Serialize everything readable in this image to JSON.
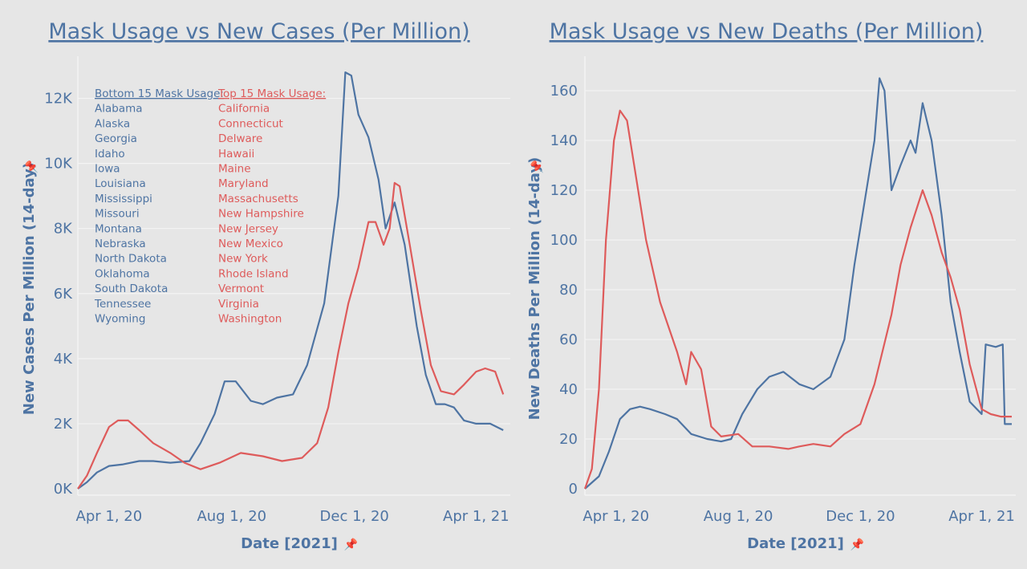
{
  "colors": {
    "bottom": "#4e74a3",
    "top": "#de5b5b",
    "grid": "#f4f4f4",
    "text": "#4e74a3"
  },
  "pin_icon": "pushpin-icon",
  "chart_data": [
    {
      "type": "line",
      "title": "Mask Usage vs New Cases (Per Million)",
      "xlabel": "Date [2021]",
      "ylabel": "New Cases Per Million (14-day)",
      "xlim": [
        "2020-03-01",
        "2021-05-05"
      ],
      "ylim": [
        0,
        13000
      ],
      "x_ticks": [
        "Apr 1, 20",
        "Aug 1, 20",
        "Dec 1, 20",
        "Apr 1, 21"
      ],
      "x_tick_dates": [
        "2020-04-01",
        "2020-08-01",
        "2020-12-01",
        "2021-04-01"
      ],
      "y_ticks": [
        0,
        2000,
        4000,
        6000,
        8000,
        10000,
        12000
      ],
      "y_tick_labels": [
        "0K",
        "2K",
        "4K",
        "6K",
        "8K",
        "10K",
        "12K"
      ],
      "legend": {
        "placement": "top-left",
        "groups": [
          {
            "header": "Bottom 15 Mask Usage:",
            "color": "#4e74a3",
            "items": [
              "Alabama",
              "Alaska",
              "Georgia",
              "Idaho",
              "Iowa",
              "Louisiana",
              "Mississippi",
              "Missouri",
              "Montana",
              "Nebraska",
              "North Dakota",
              "Oklahoma",
              "South Dakota",
              "Tennessee",
              "Wyoming"
            ]
          },
          {
            "header": "Top 15 Mask Usage:",
            "color": "#de5b5b",
            "items": [
              "California",
              "Connecticut",
              "Delware",
              "Hawaii",
              "Maine",
              "Maryland",
              "Massachusetts",
              "New Hampshire",
              "New Jersey",
              "New Mexico",
              "New York",
              "Rhode Island",
              "Vermont",
              "Virginia",
              "Washington"
            ]
          }
        ]
      },
      "series": [
        {
          "color": "#4e74a3",
          "points": [
            [
              "2020-03-01",
              0
            ],
            [
              "2020-03-10",
              200
            ],
            [
              "2020-03-20",
              500
            ],
            [
              "2020-04-01",
              700
            ],
            [
              "2020-04-15",
              750
            ],
            [
              "2020-05-01",
              850
            ],
            [
              "2020-05-15",
              850
            ],
            [
              "2020-06-01",
              800
            ],
            [
              "2020-06-20",
              850
            ],
            [
              "2020-07-01",
              1400
            ],
            [
              "2020-07-15",
              2300
            ],
            [
              "2020-07-25",
              3300
            ],
            [
              "2020-08-05",
              3300
            ],
            [
              "2020-08-20",
              2700
            ],
            [
              "2020-09-01",
              2600
            ],
            [
              "2020-09-15",
              2800
            ],
            [
              "2020-10-01",
              2900
            ],
            [
              "2020-10-15",
              3800
            ],
            [
              "2020-11-01",
              5700
            ],
            [
              "2020-11-15",
              9000
            ],
            [
              "2020-11-22",
              12800
            ],
            [
              "2020-11-28",
              12700
            ],
            [
              "2020-12-05",
              11500
            ],
            [
              "2020-12-15",
              10800
            ],
            [
              "2020-12-25",
              9500
            ],
            [
              "2021-01-01",
              8000
            ],
            [
              "2021-01-10",
              8800
            ],
            [
              "2021-01-20",
              7500
            ],
            [
              "2021-02-01",
              5000
            ],
            [
              "2021-02-10",
              3500
            ],
            [
              "2021-02-20",
              2600
            ],
            [
              "2021-03-01",
              2600
            ],
            [
              "2021-03-10",
              2500
            ],
            [
              "2021-03-20",
              2100
            ],
            [
              "2021-04-01",
              2000
            ],
            [
              "2021-04-15",
              2000
            ],
            [
              "2021-04-28",
              1800
            ]
          ]
        },
        {
          "color": "#de5b5b",
          "points": [
            [
              "2020-03-01",
              0
            ],
            [
              "2020-03-10",
              400
            ],
            [
              "2020-03-20",
              1100
            ],
            [
              "2020-04-01",
              1900
            ],
            [
              "2020-04-10",
              2100
            ],
            [
              "2020-04-20",
              2100
            ],
            [
              "2020-05-01",
              1800
            ],
            [
              "2020-05-15",
              1400
            ],
            [
              "2020-06-01",
              1100
            ],
            [
              "2020-06-15",
              800
            ],
            [
              "2020-07-01",
              600
            ],
            [
              "2020-07-20",
              800
            ],
            [
              "2020-08-10",
              1100
            ],
            [
              "2020-09-01",
              1000
            ],
            [
              "2020-09-20",
              850
            ],
            [
              "2020-10-10",
              950
            ],
            [
              "2020-10-25",
              1400
            ],
            [
              "2020-11-05",
              2500
            ],
            [
              "2020-11-15",
              4200
            ],
            [
              "2020-11-25",
              5700
            ],
            [
              "2020-12-05",
              6800
            ],
            [
              "2020-12-15",
              8200
            ],
            [
              "2020-12-22",
              8200
            ],
            [
              "2020-12-30",
              7500
            ],
            [
              "2021-01-05",
              8000
            ],
            [
              "2021-01-10",
              9400
            ],
            [
              "2021-01-15",
              9300
            ],
            [
              "2021-01-25",
              7500
            ],
            [
              "2021-02-05",
              5500
            ],
            [
              "2021-02-15",
              3800
            ],
            [
              "2021-02-25",
              3000
            ],
            [
              "2021-03-10",
              2900
            ],
            [
              "2021-03-20",
              3200
            ],
            [
              "2021-04-01",
              3600
            ],
            [
              "2021-04-10",
              3700
            ],
            [
              "2021-04-20",
              3600
            ],
            [
              "2021-04-28",
              2900
            ]
          ]
        }
      ]
    },
    {
      "type": "line",
      "title": "Mask Usage vs New Deaths (Per Million)",
      "xlabel": "Date [2021]",
      "ylabel": "New Deaths Per Million (14-day)",
      "xlim": [
        "2020-03-01",
        "2021-05-05"
      ],
      "ylim": [
        0,
        170
      ],
      "x_ticks": [
        "Apr 1, 20",
        "Aug 1, 20",
        "Dec 1, 20",
        "Apr 1, 21"
      ],
      "x_tick_dates": [
        "2020-04-01",
        "2020-08-01",
        "2020-12-01",
        "2021-04-01"
      ],
      "y_ticks": [
        0,
        20,
        40,
        60,
        80,
        100,
        120,
        140,
        160
      ],
      "y_tick_labels": [
        "0",
        "20",
        "40",
        "60",
        "80",
        "100",
        "120",
        "140",
        "160"
      ],
      "series": [
        {
          "color": "#4e74a3",
          "points": [
            [
              "2020-03-01",
              0
            ],
            [
              "2020-03-15",
              5
            ],
            [
              "2020-03-25",
              15
            ],
            [
              "2020-04-05",
              28
            ],
            [
              "2020-04-15",
              32
            ],
            [
              "2020-04-25",
              33
            ],
            [
              "2020-05-05",
              32
            ],
            [
              "2020-05-20",
              30
            ],
            [
              "2020-06-01",
              28
            ],
            [
              "2020-06-15",
              22
            ],
            [
              "2020-07-01",
              20
            ],
            [
              "2020-07-15",
              19
            ],
            [
              "2020-07-25",
              20
            ],
            [
              "2020-08-05",
              30
            ],
            [
              "2020-08-20",
              40
            ],
            [
              "2020-09-01",
              45
            ],
            [
              "2020-09-15",
              47
            ],
            [
              "2020-10-01",
              42
            ],
            [
              "2020-10-15",
              40
            ],
            [
              "2020-11-01",
              45
            ],
            [
              "2020-11-15",
              60
            ],
            [
              "2020-11-25",
              90
            ],
            [
              "2020-12-05",
              115
            ],
            [
              "2020-12-15",
              140
            ],
            [
              "2020-12-20",
              165
            ],
            [
              "2020-12-25",
              160
            ],
            [
              "2021-01-01",
              120
            ],
            [
              "2021-01-10",
              130
            ],
            [
              "2021-01-20",
              140
            ],
            [
              "2021-01-25",
              135
            ],
            [
              "2021-02-01",
              155
            ],
            [
              "2021-02-10",
              140
            ],
            [
              "2021-02-20",
              110
            ],
            [
              "2021-03-01",
              75
            ],
            [
              "2021-03-10",
              55
            ],
            [
              "2021-03-20",
              35
            ],
            [
              "2021-04-01",
              30
            ],
            [
              "2021-04-05",
              58
            ],
            [
              "2021-04-15",
              57
            ],
            [
              "2021-04-22",
              58
            ],
            [
              "2021-04-24",
              26
            ],
            [
              "2021-05-01",
              26
            ]
          ]
        },
        {
          "color": "#de5b5b",
          "points": [
            [
              "2020-03-01",
              0
            ],
            [
              "2020-03-08",
              8
            ],
            [
              "2020-03-15",
              40
            ],
            [
              "2020-03-22",
              100
            ],
            [
              "2020-03-30",
              140
            ],
            [
              "2020-04-05",
              152
            ],
            [
              "2020-04-12",
              148
            ],
            [
              "2020-04-20",
              128
            ],
            [
              "2020-05-01",
              100
            ],
            [
              "2020-05-15",
              75
            ],
            [
              "2020-06-01",
              55
            ],
            [
              "2020-06-10",
              42
            ],
            [
              "2020-06-15",
              55
            ],
            [
              "2020-06-25",
              48
            ],
            [
              "2020-07-05",
              25
            ],
            [
              "2020-07-15",
              21
            ],
            [
              "2020-08-01",
              22
            ],
            [
              "2020-08-15",
              17
            ],
            [
              "2020-09-01",
              17
            ],
            [
              "2020-09-20",
              16
            ],
            [
              "2020-10-01",
              17
            ],
            [
              "2020-10-15",
              18
            ],
            [
              "2020-11-01",
              17
            ],
            [
              "2020-11-15",
              22
            ],
            [
              "2020-12-01",
              26
            ],
            [
              "2020-12-15",
              42
            ],
            [
              "2021-01-01",
              70
            ],
            [
              "2021-01-10",
              90
            ],
            [
              "2021-01-20",
              105
            ],
            [
              "2021-02-01",
              120
            ],
            [
              "2021-02-10",
              110
            ],
            [
              "2021-02-20",
              95
            ],
            [
              "2021-03-01",
              85
            ],
            [
              "2021-03-10",
              72
            ],
            [
              "2021-03-20",
              50
            ],
            [
              "2021-04-01",
              32
            ],
            [
              "2021-04-10",
              30
            ],
            [
              "2021-04-20",
              29
            ],
            [
              "2021-05-01",
              29
            ]
          ]
        }
      ]
    }
  ]
}
